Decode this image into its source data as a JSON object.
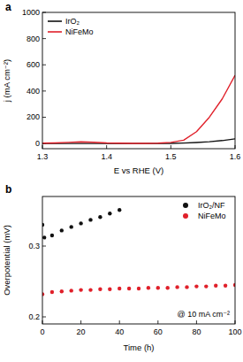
{
  "chart_data": [
    {
      "type": "line",
      "title": "a",
      "x_label": "E vs RHE (V)",
      "y_label": "j (mA cm⁻²)",
      "xlim": [
        1.3,
        1.6
      ],
      "xticks": [
        1.3,
        1.4,
        1.5,
        1.6
      ],
      "ylim": [
        -40,
        1000
      ],
      "yticks": [
        0,
        200,
        400,
        600,
        800,
        1000
      ],
      "grid": false,
      "legend": "upper left",
      "series": [
        {
          "name": "IrO₂",
          "color": "#111111",
          "x": [
            1.3,
            1.32,
            1.34,
            1.36,
            1.38,
            1.4,
            1.42,
            1.44,
            1.46,
            1.48,
            1.5,
            1.52,
            1.54,
            1.56,
            1.58,
            1.6
          ],
          "values": [
            0,
            0,
            0,
            0,
            0,
            0,
            0,
            0,
            0,
            0,
            1,
            3,
            7,
            13,
            22,
            35
          ]
        },
        {
          "name": "NiFeMo",
          "color": "#e0202a",
          "x": [
            1.3,
            1.32,
            1.34,
            1.36,
            1.38,
            1.4,
            1.42,
            1.44,
            1.46,
            1.48,
            1.5,
            1.52,
            1.54,
            1.56,
            1.58,
            1.6
          ],
          "values": [
            2,
            4,
            8,
            12,
            9,
            4,
            2,
            1,
            1,
            2,
            8,
            25,
            90,
            200,
            340,
            520
          ]
        }
      ]
    },
    {
      "type": "scatter",
      "title": "b",
      "x_label": "Time (h)",
      "y_label": "Overpotential (mV)",
      "xlim": [
        0,
        100
      ],
      "xticks": [
        0,
        20,
        40,
        60,
        80,
        100
      ],
      "ylim": [
        0.19,
        0.37
      ],
      "yticks": [
        0.2,
        0.3
      ],
      "grid": false,
      "legend": "upper right",
      "marker": "circle",
      "annotation": "@ 10 mA cm⁻²",
      "series": [
        {
          "name": "IrO₂/NF",
          "color": "#111111",
          "x": [
            0,
            1,
            5,
            10,
            15,
            20,
            25,
            30,
            35,
            40
          ],
          "values": [
            0.33,
            0.312,
            0.315,
            0.322,
            0.327,
            0.332,
            0.337,
            0.341,
            0.346,
            0.351
          ]
        },
        {
          "name": "NiFeMo",
          "color": "#e0202a",
          "x": [
            0,
            5,
            10,
            15,
            20,
            25,
            30,
            35,
            40,
            45,
            50,
            55,
            60,
            65,
            70,
            75,
            80,
            85,
            90,
            95,
            100
          ],
          "values": [
            0.232,
            0.235,
            0.236,
            0.237,
            0.238,
            0.238,
            0.239,
            0.239,
            0.24,
            0.24,
            0.24,
            0.241,
            0.241,
            0.241,
            0.242,
            0.242,
            0.243,
            0.243,
            0.244,
            0.244,
            0.245
          ]
        }
      ]
    }
  ]
}
